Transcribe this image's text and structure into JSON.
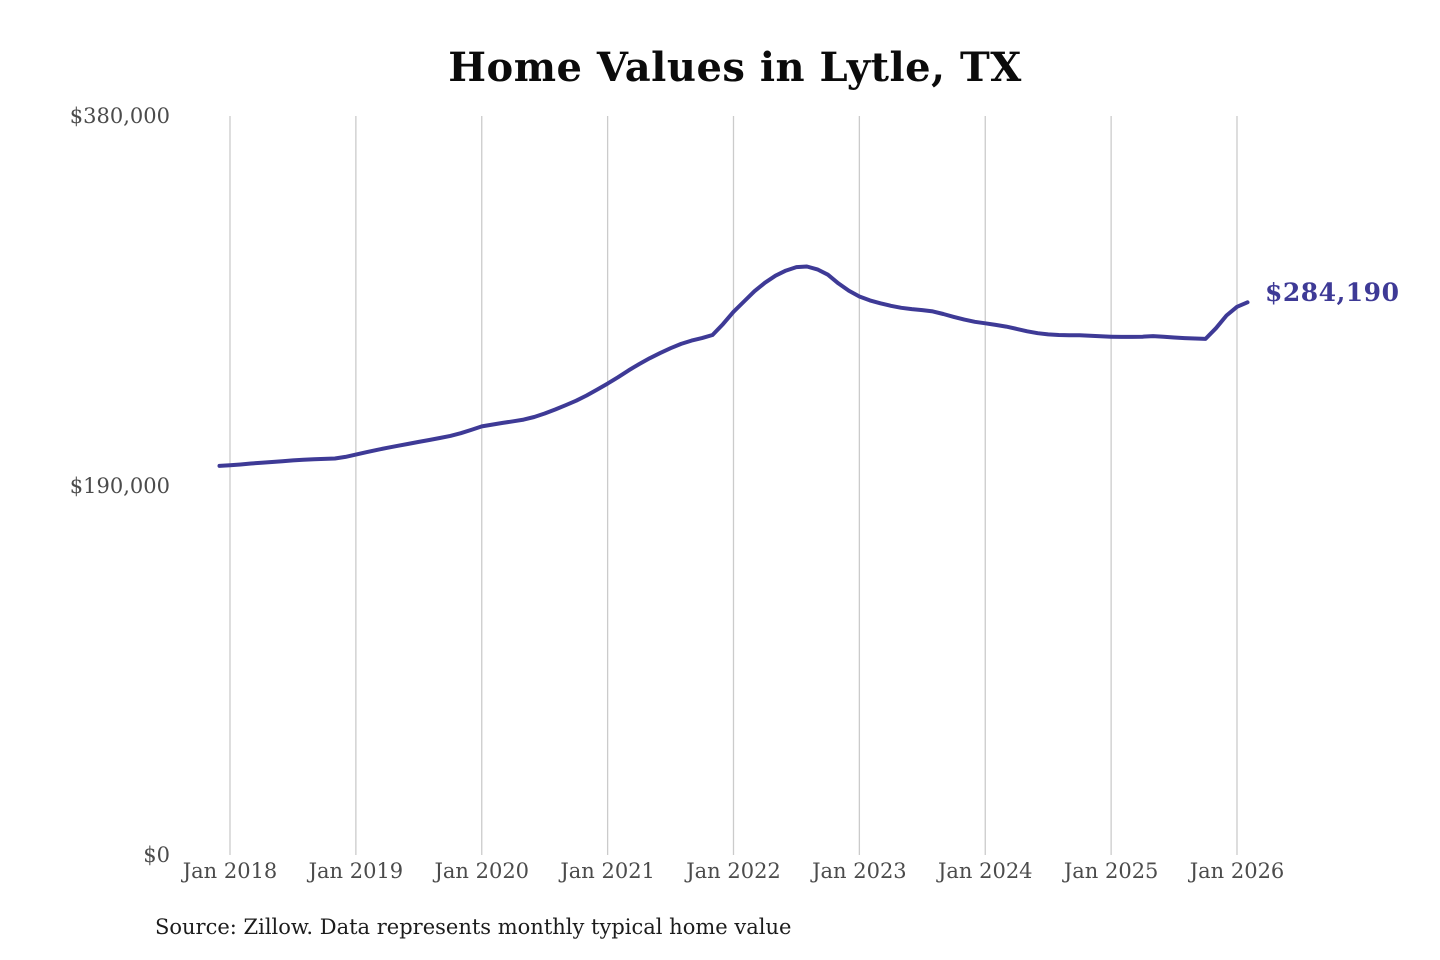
{
  "colors": {
    "line": "#3e3a96",
    "grid": "#cbcbcb",
    "axis_text": "#4b4b4b",
    "title": "#0b0b0b",
    "source": "#1c1c1c",
    "background": "#ffffff"
  },
  "chart_data": {
    "type": "line",
    "title": "Home Values in Lytle, TX",
    "source": "Source: Zillow. Data represents monthly typical home value",
    "annotation": "$284,190",
    "xlabel": "",
    "ylabel": "",
    "ylim": [
      0,
      380000
    ],
    "grid": "vertical-only",
    "legend": "none",
    "x_tick_labels": [
      "Jan 2018",
      "Jan 2019",
      "Jan 2020",
      "Jan 2021",
      "Jan 2022",
      "Jan 2023",
      "Jan 2024",
      "Jan 2025",
      "Jan 2026"
    ],
    "y_ticks": [
      {
        "label": "$0",
        "value": 0
      },
      {
        "label": "$190,000",
        "value": 190000
      },
      {
        "label": "$380,000",
        "value": 380000
      }
    ],
    "series": [
      {
        "name": "Monthly typical home value",
        "frequency": "monthly",
        "start_month": "2017-12",
        "end_month": "2026-02",
        "latest_value": 284190,
        "values": [
          200100,
          200400,
          200800,
          201300,
          201700,
          202100,
          202500,
          202900,
          203200,
          203500,
          203700,
          203900,
          204700,
          205900,
          207100,
          208300,
          209400,
          210400,
          211400,
          212400,
          213400,
          214400,
          215500,
          216900,
          218600,
          220400,
          221300,
          222200,
          223000,
          223900,
          225200,
          227000,
          229100,
          231300,
          233600,
          236300,
          239300,
          242400,
          245700,
          249200,
          252400,
          255400,
          258100,
          260600,
          262800,
          264500,
          265800,
          267400,
          273000,
          279300,
          284600,
          289900,
          294300,
          297900,
          300500,
          302300,
          302600,
          301100,
          298400,
          293900,
          290100,
          287200,
          285200,
          283700,
          282400,
          281400,
          280700,
          280200,
          279500,
          278200,
          276700,
          275300,
          274200,
          273400,
          272600,
          271700,
          270500,
          269300,
          268300,
          267700,
          267400,
          267300,
          267300,
          267000,
          266700,
          266500,
          266400,
          266400,
          266500,
          266800,
          266500,
          266100,
          265800,
          265600,
          265400,
          270900,
          277400,
          281900,
          284190
        ]
      }
    ]
  }
}
